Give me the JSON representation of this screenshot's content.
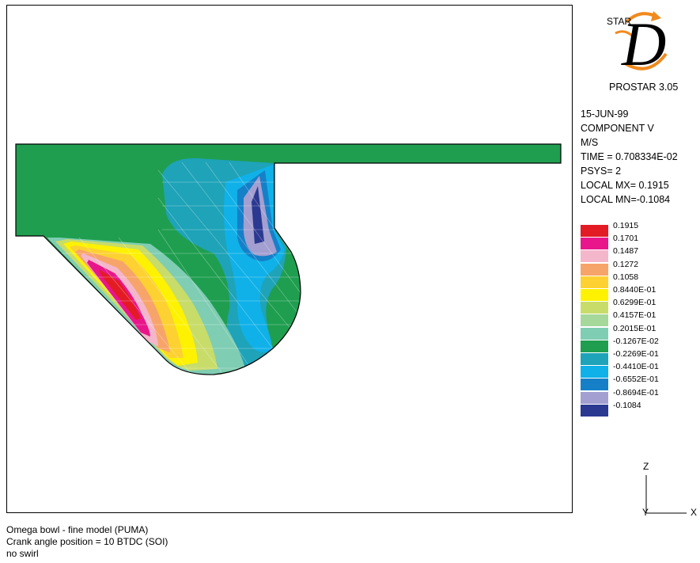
{
  "logo": {
    "brand": "STAR",
    "letter": "D",
    "product": "PROSTAR 3.05",
    "accent_color": "#f08a1d"
  },
  "info": {
    "date": "15-JUN-99",
    "component": "COMPONENT V",
    "units": "M/S",
    "time": "TIME = 0.708334E-02",
    "psys": "PSYS= 2",
    "local_max": "LOCAL MX= 0.1915",
    "local_min": "LOCAL MN=-0.1084"
  },
  "legend": {
    "labels": [
      "0.1915",
      "0.1701",
      "0.1487",
      "0.1272",
      "0.1058",
      "0.8440E-01",
      "0.6299E-01",
      "0.4157E-01",
      "0.2015E-01",
      "-0.1267E-02",
      "-0.2269E-01",
      "-0.4410E-01",
      "-0.6552E-01",
      "-0.8694E-01",
      "-0.1084"
    ],
    "colors": [
      "#e31b25",
      "#e8168a",
      "#f4b6cb",
      "#f7a46a",
      "#fdd131",
      "#fff200",
      "#c8dc6a",
      "#a6d89c",
      "#7fcdb3",
      "#1f9e4f",
      "#1ea3b8",
      "#0fb1e8",
      "#1580c8",
      "#a39fd0",
      "#2b3990"
    ]
  },
  "axes": {
    "z_label": "Z",
    "y_label": "Y",
    "x_label": "X"
  },
  "caption": {
    "line1": "Omega bowl - fine model (PUMA)",
    "line2": "Crank angle position = 10  BTDC (SOI)",
    "line3": "no swirl"
  }
}
